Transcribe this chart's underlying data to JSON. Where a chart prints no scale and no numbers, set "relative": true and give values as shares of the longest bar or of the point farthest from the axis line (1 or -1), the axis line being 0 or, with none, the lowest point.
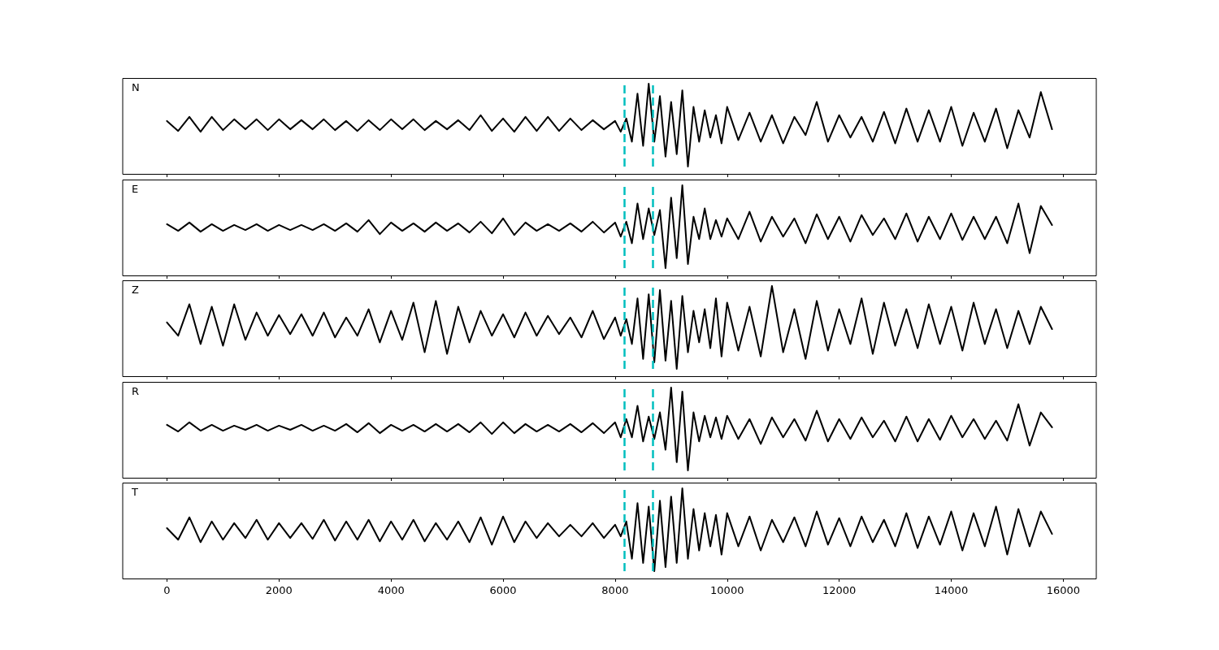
{
  "chart_data": [
    {
      "type": "line",
      "relative": true,
      "annotations": [
        "N"
      ],
      "xlim": [
        -790,
        16590
      ],
      "xticks": [
        0,
        2000,
        4000,
        6000,
        8000,
        10000,
        12000,
        14000,
        16000
      ],
      "tick_labels": false,
      "grid": false,
      "marker": "none",
      "line_style": "solid",
      "x": [
        0,
        200,
        400,
        600,
        800,
        1000,
        1200,
        1400,
        1600,
        1800,
        2000,
        2200,
        2400,
        2600,
        2800,
        3000,
        3200,
        3400,
        3600,
        3800,
        4000,
        4200,
        4400,
        4600,
        4800,
        5000,
        5200,
        5400,
        5600,
        5800,
        6000,
        6200,
        6400,
        6600,
        6800,
        7000,
        7200,
        7400,
        7600,
        7800,
        8000,
        8100,
        8200,
        8300,
        8400,
        8500,
        8600,
        8700,
        8800,
        8900,
        9000,
        9100,
        9200,
        9300,
        9400,
        9500,
        9600,
        9700,
        9800,
        9900,
        10000,
        10200,
        10400,
        10600,
        10800,
        11000,
        11200,
        11400,
        11600,
        11800,
        12000,
        12200,
        12400,
        12600,
        12800,
        13000,
        13200,
        13400,
        13600,
        13800,
        14000,
        14200,
        14400,
        14600,
        14800,
        15000,
        15200,
        15400,
        15600,
        15800
      ],
      "ref_lines": [
        {
          "axis": "x",
          "value": 8160,
          "color": "#00bfbf",
          "line_style": "dashed"
        },
        {
          "axis": "x",
          "value": 8670,
          "color": "#00bfbf",
          "line_style": "dashed"
        }
      ],
      "series": [
        {
          "color": "#000000",
          "values": [
            0.55,
            0.43,
            0.6,
            0.42,
            0.6,
            0.44,
            0.57,
            0.45,
            0.57,
            0.44,
            0.57,
            0.45,
            0.56,
            0.45,
            0.57,
            0.44,
            0.55,
            0.43,
            0.56,
            0.44,
            0.57,
            0.45,
            0.57,
            0.44,
            0.55,
            0.45,
            0.56,
            0.44,
            0.62,
            0.43,
            0.58,
            0.42,
            0.6,
            0.43,
            0.6,
            0.43,
            0.58,
            0.44,
            0.56,
            0.45,
            0.55,
            0.42,
            0.58,
            0.3,
            0.88,
            0.25,
            1.0,
            0.3,
            0.85,
            0.12,
            0.78,
            0.15,
            0.92,
            0.0,
            0.72,
            0.3,
            0.68,
            0.35,
            0.62,
            0.28,
            0.72,
            0.32,
            0.65,
            0.3,
            0.62,
            0.28,
            0.6,
            0.38,
            0.78,
            0.3,
            0.62,
            0.35,
            0.6,
            0.3,
            0.66,
            0.28,
            0.7,
            0.3,
            0.68,
            0.3,
            0.72,
            0.25,
            0.65,
            0.3,
            0.7,
            0.22,
            0.68,
            0.35,
            0.9,
            0.45
          ]
        }
      ]
    },
    {
      "type": "line",
      "relative": true,
      "annotations": [
        "E"
      ],
      "xlim": [
        -790,
        16590
      ],
      "xticks": [
        0,
        2000,
        4000,
        6000,
        8000,
        10000,
        12000,
        14000,
        16000
      ],
      "tick_labels": false,
      "grid": false,
      "marker": "none",
      "line_style": "solid",
      "x": [
        0,
        200,
        400,
        600,
        800,
        1000,
        1200,
        1400,
        1600,
        1800,
        2000,
        2200,
        2400,
        2600,
        2800,
        3000,
        3200,
        3400,
        3600,
        3800,
        4000,
        4200,
        4400,
        4600,
        4800,
        5000,
        5200,
        5400,
        5600,
        5800,
        6000,
        6200,
        6400,
        6600,
        6800,
        7000,
        7200,
        7400,
        7600,
        7800,
        8000,
        8100,
        8200,
        8300,
        8400,
        8500,
        8600,
        8700,
        8800,
        8900,
        9000,
        9100,
        9200,
        9300,
        9400,
        9500,
        9600,
        9700,
        9800,
        9900,
        10000,
        10200,
        10400,
        10600,
        10800,
        11000,
        11200,
        11400,
        11600,
        11800,
        12000,
        12200,
        12400,
        12600,
        12800,
        13000,
        13200,
        13400,
        13600,
        13800,
        14000,
        14200,
        14400,
        14600,
        14800,
        15000,
        15200,
        15400,
        15600,
        15800
      ],
      "ref_lines": [
        {
          "axis": "x",
          "value": 8160,
          "color": "#00bfbf",
          "line_style": "dashed"
        },
        {
          "axis": "x",
          "value": 8670,
          "color": "#00bfbf",
          "line_style": "dashed"
        }
      ],
      "series": [
        {
          "color": "#000000",
          "values": [
            0.53,
            0.45,
            0.55,
            0.44,
            0.53,
            0.45,
            0.52,
            0.46,
            0.53,
            0.45,
            0.52,
            0.46,
            0.52,
            0.46,
            0.53,
            0.45,
            0.54,
            0.44,
            0.58,
            0.41,
            0.55,
            0.45,
            0.54,
            0.44,
            0.55,
            0.45,
            0.54,
            0.43,
            0.56,
            0.42,
            0.6,
            0.4,
            0.55,
            0.45,
            0.53,
            0.45,
            0.54,
            0.44,
            0.56,
            0.43,
            0.55,
            0.38,
            0.56,
            0.3,
            0.78,
            0.35,
            0.72,
            0.4,
            0.7,
            0.0,
            0.85,
            0.12,
            1.0,
            0.05,
            0.62,
            0.35,
            0.72,
            0.35,
            0.58,
            0.38,
            0.6,
            0.35,
            0.68,
            0.32,
            0.62,
            0.38,
            0.6,
            0.3,
            0.65,
            0.35,
            0.62,
            0.32,
            0.64,
            0.4,
            0.6,
            0.35,
            0.66,
            0.32,
            0.62,
            0.35,
            0.66,
            0.34,
            0.62,
            0.35,
            0.62,
            0.3,
            0.78,
            0.18,
            0.75,
            0.52
          ]
        }
      ]
    },
    {
      "type": "line",
      "relative": true,
      "annotations": [
        "Z"
      ],
      "xlim": [
        -790,
        16590
      ],
      "xticks": [
        0,
        2000,
        4000,
        6000,
        8000,
        10000,
        12000,
        14000,
        16000
      ],
      "tick_labels": false,
      "grid": false,
      "marker": "none",
      "line_style": "solid",
      "x": [
        0,
        200,
        400,
        600,
        800,
        1000,
        1200,
        1400,
        1600,
        1800,
        2000,
        2200,
        2400,
        2600,
        2800,
        3000,
        3200,
        3400,
        3600,
        3800,
        4000,
        4200,
        4400,
        4600,
        4800,
        5000,
        5200,
        5400,
        5600,
        5800,
        6000,
        6200,
        6400,
        6600,
        6800,
        7000,
        7200,
        7400,
        7600,
        7800,
        8000,
        8100,
        8200,
        8300,
        8400,
        8500,
        8600,
        8700,
        8800,
        8900,
        9000,
        9100,
        9200,
        9300,
        9400,
        9500,
        9600,
        9700,
        9800,
        9900,
        10000,
        10200,
        10400,
        10600,
        10800,
        11000,
        11200,
        11400,
        11600,
        11800,
        12000,
        12200,
        12400,
        12600,
        12800,
        13000,
        13200,
        13400,
        13600,
        13800,
        14000,
        14200,
        14400,
        14600,
        14800,
        15000,
        15200,
        15400,
        15600,
        15800
      ],
      "ref_lines": [
        {
          "axis": "x",
          "value": 8160,
          "color": "#00bfbf",
          "line_style": "dashed"
        },
        {
          "axis": "x",
          "value": 8670,
          "color": "#00bfbf",
          "line_style": "dashed"
        }
      ],
      "series": [
        {
          "color": "#000000",
          "values": [
            0.56,
            0.4,
            0.78,
            0.3,
            0.75,
            0.28,
            0.78,
            0.35,
            0.68,
            0.4,
            0.65,
            0.42,
            0.66,
            0.4,
            0.68,
            0.38,
            0.62,
            0.4,
            0.72,
            0.32,
            0.7,
            0.35,
            0.8,
            0.2,
            0.82,
            0.18,
            0.75,
            0.32,
            0.7,
            0.4,
            0.66,
            0.38,
            0.68,
            0.4,
            0.64,
            0.42,
            0.62,
            0.38,
            0.7,
            0.36,
            0.62,
            0.4,
            0.6,
            0.3,
            0.85,
            0.12,
            0.9,
            0.08,
            0.95,
            0.1,
            0.82,
            0.0,
            0.88,
            0.2,
            0.7,
            0.32,
            0.72,
            0.25,
            0.85,
            0.15,
            0.8,
            0.22,
            0.75,
            0.15,
            1.0,
            0.2,
            0.72,
            0.12,
            0.82,
            0.22,
            0.72,
            0.3,
            0.85,
            0.18,
            0.8,
            0.28,
            0.72,
            0.25,
            0.78,
            0.3,
            0.75,
            0.22,
            0.8,
            0.3,
            0.72,
            0.25,
            0.7,
            0.3,
            0.75,
            0.48
          ]
        }
      ]
    },
    {
      "type": "line",
      "relative": true,
      "annotations": [
        "R"
      ],
      "xlim": [
        -790,
        16590
      ],
      "xticks": [
        0,
        2000,
        4000,
        6000,
        8000,
        10000,
        12000,
        14000,
        16000
      ],
      "tick_labels": false,
      "grid": false,
      "marker": "none",
      "line_style": "solid",
      "x": [
        0,
        200,
        400,
        600,
        800,
        1000,
        1200,
        1400,
        1600,
        1800,
        2000,
        2200,
        2400,
        2600,
        2800,
        3000,
        3200,
        3400,
        3600,
        3800,
        4000,
        4200,
        4400,
        4600,
        4800,
        5000,
        5200,
        5400,
        5600,
        5800,
        6000,
        6200,
        6400,
        6600,
        6800,
        7000,
        7200,
        7400,
        7600,
        7800,
        8000,
        8100,
        8200,
        8300,
        8400,
        8500,
        8600,
        8700,
        8800,
        8900,
        9000,
        9100,
        9200,
        9300,
        9400,
        9500,
        9600,
        9700,
        9800,
        9900,
        10000,
        10200,
        10400,
        10600,
        10800,
        11000,
        11200,
        11400,
        11600,
        11800,
        12000,
        12200,
        12400,
        12600,
        12800,
        13000,
        13200,
        13400,
        13600,
        13800,
        14000,
        14200,
        14400,
        14600,
        14800,
        15000,
        15200,
        15400,
        15600,
        15800
      ],
      "ref_lines": [
        {
          "axis": "x",
          "value": 8160,
          "color": "#00bfbf",
          "line_style": "dashed"
        },
        {
          "axis": "x",
          "value": 8670,
          "color": "#00bfbf",
          "line_style": "dashed"
        }
      ],
      "series": [
        {
          "color": "#000000",
          "values": [
            0.55,
            0.47,
            0.58,
            0.48,
            0.55,
            0.48,
            0.54,
            0.49,
            0.55,
            0.48,
            0.54,
            0.49,
            0.55,
            0.48,
            0.54,
            0.48,
            0.56,
            0.46,
            0.57,
            0.45,
            0.55,
            0.48,
            0.55,
            0.47,
            0.56,
            0.47,
            0.56,
            0.46,
            0.58,
            0.44,
            0.58,
            0.45,
            0.56,
            0.47,
            0.55,
            0.47,
            0.56,
            0.46,
            0.57,
            0.45,
            0.58,
            0.4,
            0.62,
            0.4,
            0.78,
            0.35,
            0.65,
            0.38,
            0.7,
            0.25,
            1.0,
            0.1,
            0.95,
            0.0,
            0.7,
            0.35,
            0.66,
            0.4,
            0.64,
            0.38,
            0.66,
            0.38,
            0.62,
            0.32,
            0.64,
            0.4,
            0.62,
            0.36,
            0.72,
            0.35,
            0.62,
            0.38,
            0.64,
            0.4,
            0.6,
            0.35,
            0.65,
            0.35,
            0.62,
            0.37,
            0.66,
            0.4,
            0.62,
            0.38,
            0.6,
            0.36,
            0.8,
            0.3,
            0.7,
            0.52
          ]
        }
      ]
    },
    {
      "type": "line",
      "relative": true,
      "annotations": [
        "T"
      ],
      "xlim": [
        -790,
        16590
      ],
      "xticks": [
        0,
        2000,
        4000,
        6000,
        8000,
        10000,
        12000,
        14000,
        16000
      ],
      "tick_labels": "x",
      "grid": false,
      "marker": "none",
      "line_style": "solid",
      "x": [
        0,
        200,
        400,
        600,
        800,
        1000,
        1200,
        1400,
        1600,
        1800,
        2000,
        2200,
        2400,
        2600,
        2800,
        3000,
        3200,
        3400,
        3600,
        3800,
        4000,
        4200,
        4400,
        4600,
        4800,
        5000,
        5200,
        5400,
        5600,
        5800,
        6000,
        6200,
        6400,
        6600,
        6800,
        7000,
        7200,
        7400,
        7600,
        7800,
        8000,
        8100,
        8200,
        8300,
        8400,
        8500,
        8600,
        8700,
        8800,
        8900,
        9000,
        9100,
        9200,
        9300,
        9400,
        9500,
        9600,
        9700,
        9800,
        9900,
        10000,
        10200,
        10400,
        10600,
        10800,
        11000,
        11200,
        11400,
        11600,
        11800,
        12000,
        12200,
        12400,
        12600,
        12800,
        13000,
        13200,
        13400,
        13600,
        13800,
        14000,
        14200,
        14400,
        14600,
        14800,
        15000,
        15200,
        15400,
        15600,
        15800
      ],
      "ref_lines": [
        {
          "axis": "x",
          "value": 8160,
          "color": "#00bfbf",
          "line_style": "dashed"
        },
        {
          "axis": "x",
          "value": 8670,
          "color": "#00bfbf",
          "line_style": "dashed"
        }
      ],
      "series": [
        {
          "color": "#000000",
          "values": [
            0.52,
            0.38,
            0.65,
            0.35,
            0.6,
            0.38,
            0.58,
            0.4,
            0.62,
            0.38,
            0.58,
            0.4,
            0.58,
            0.39,
            0.62,
            0.37,
            0.6,
            0.38,
            0.62,
            0.36,
            0.6,
            0.38,
            0.62,
            0.36,
            0.58,
            0.38,
            0.6,
            0.35,
            0.65,
            0.32,
            0.66,
            0.35,
            0.6,
            0.4,
            0.58,
            0.42,
            0.56,
            0.42,
            0.58,
            0.4,
            0.56,
            0.42,
            0.6,
            0.15,
            0.82,
            0.1,
            0.78,
            0.0,
            0.85,
            0.05,
            0.9,
            0.1,
            1.0,
            0.15,
            0.75,
            0.25,
            0.7,
            0.3,
            0.68,
            0.2,
            0.7,
            0.3,
            0.66,
            0.25,
            0.62,
            0.35,
            0.65,
            0.3,
            0.72,
            0.32,
            0.64,
            0.3,
            0.66,
            0.35,
            0.62,
            0.3,
            0.7,
            0.28,
            0.66,
            0.32,
            0.72,
            0.25,
            0.7,
            0.3,
            0.78,
            0.2,
            0.75,
            0.3,
            0.72,
            0.45
          ]
        }
      ]
    }
  ]
}
